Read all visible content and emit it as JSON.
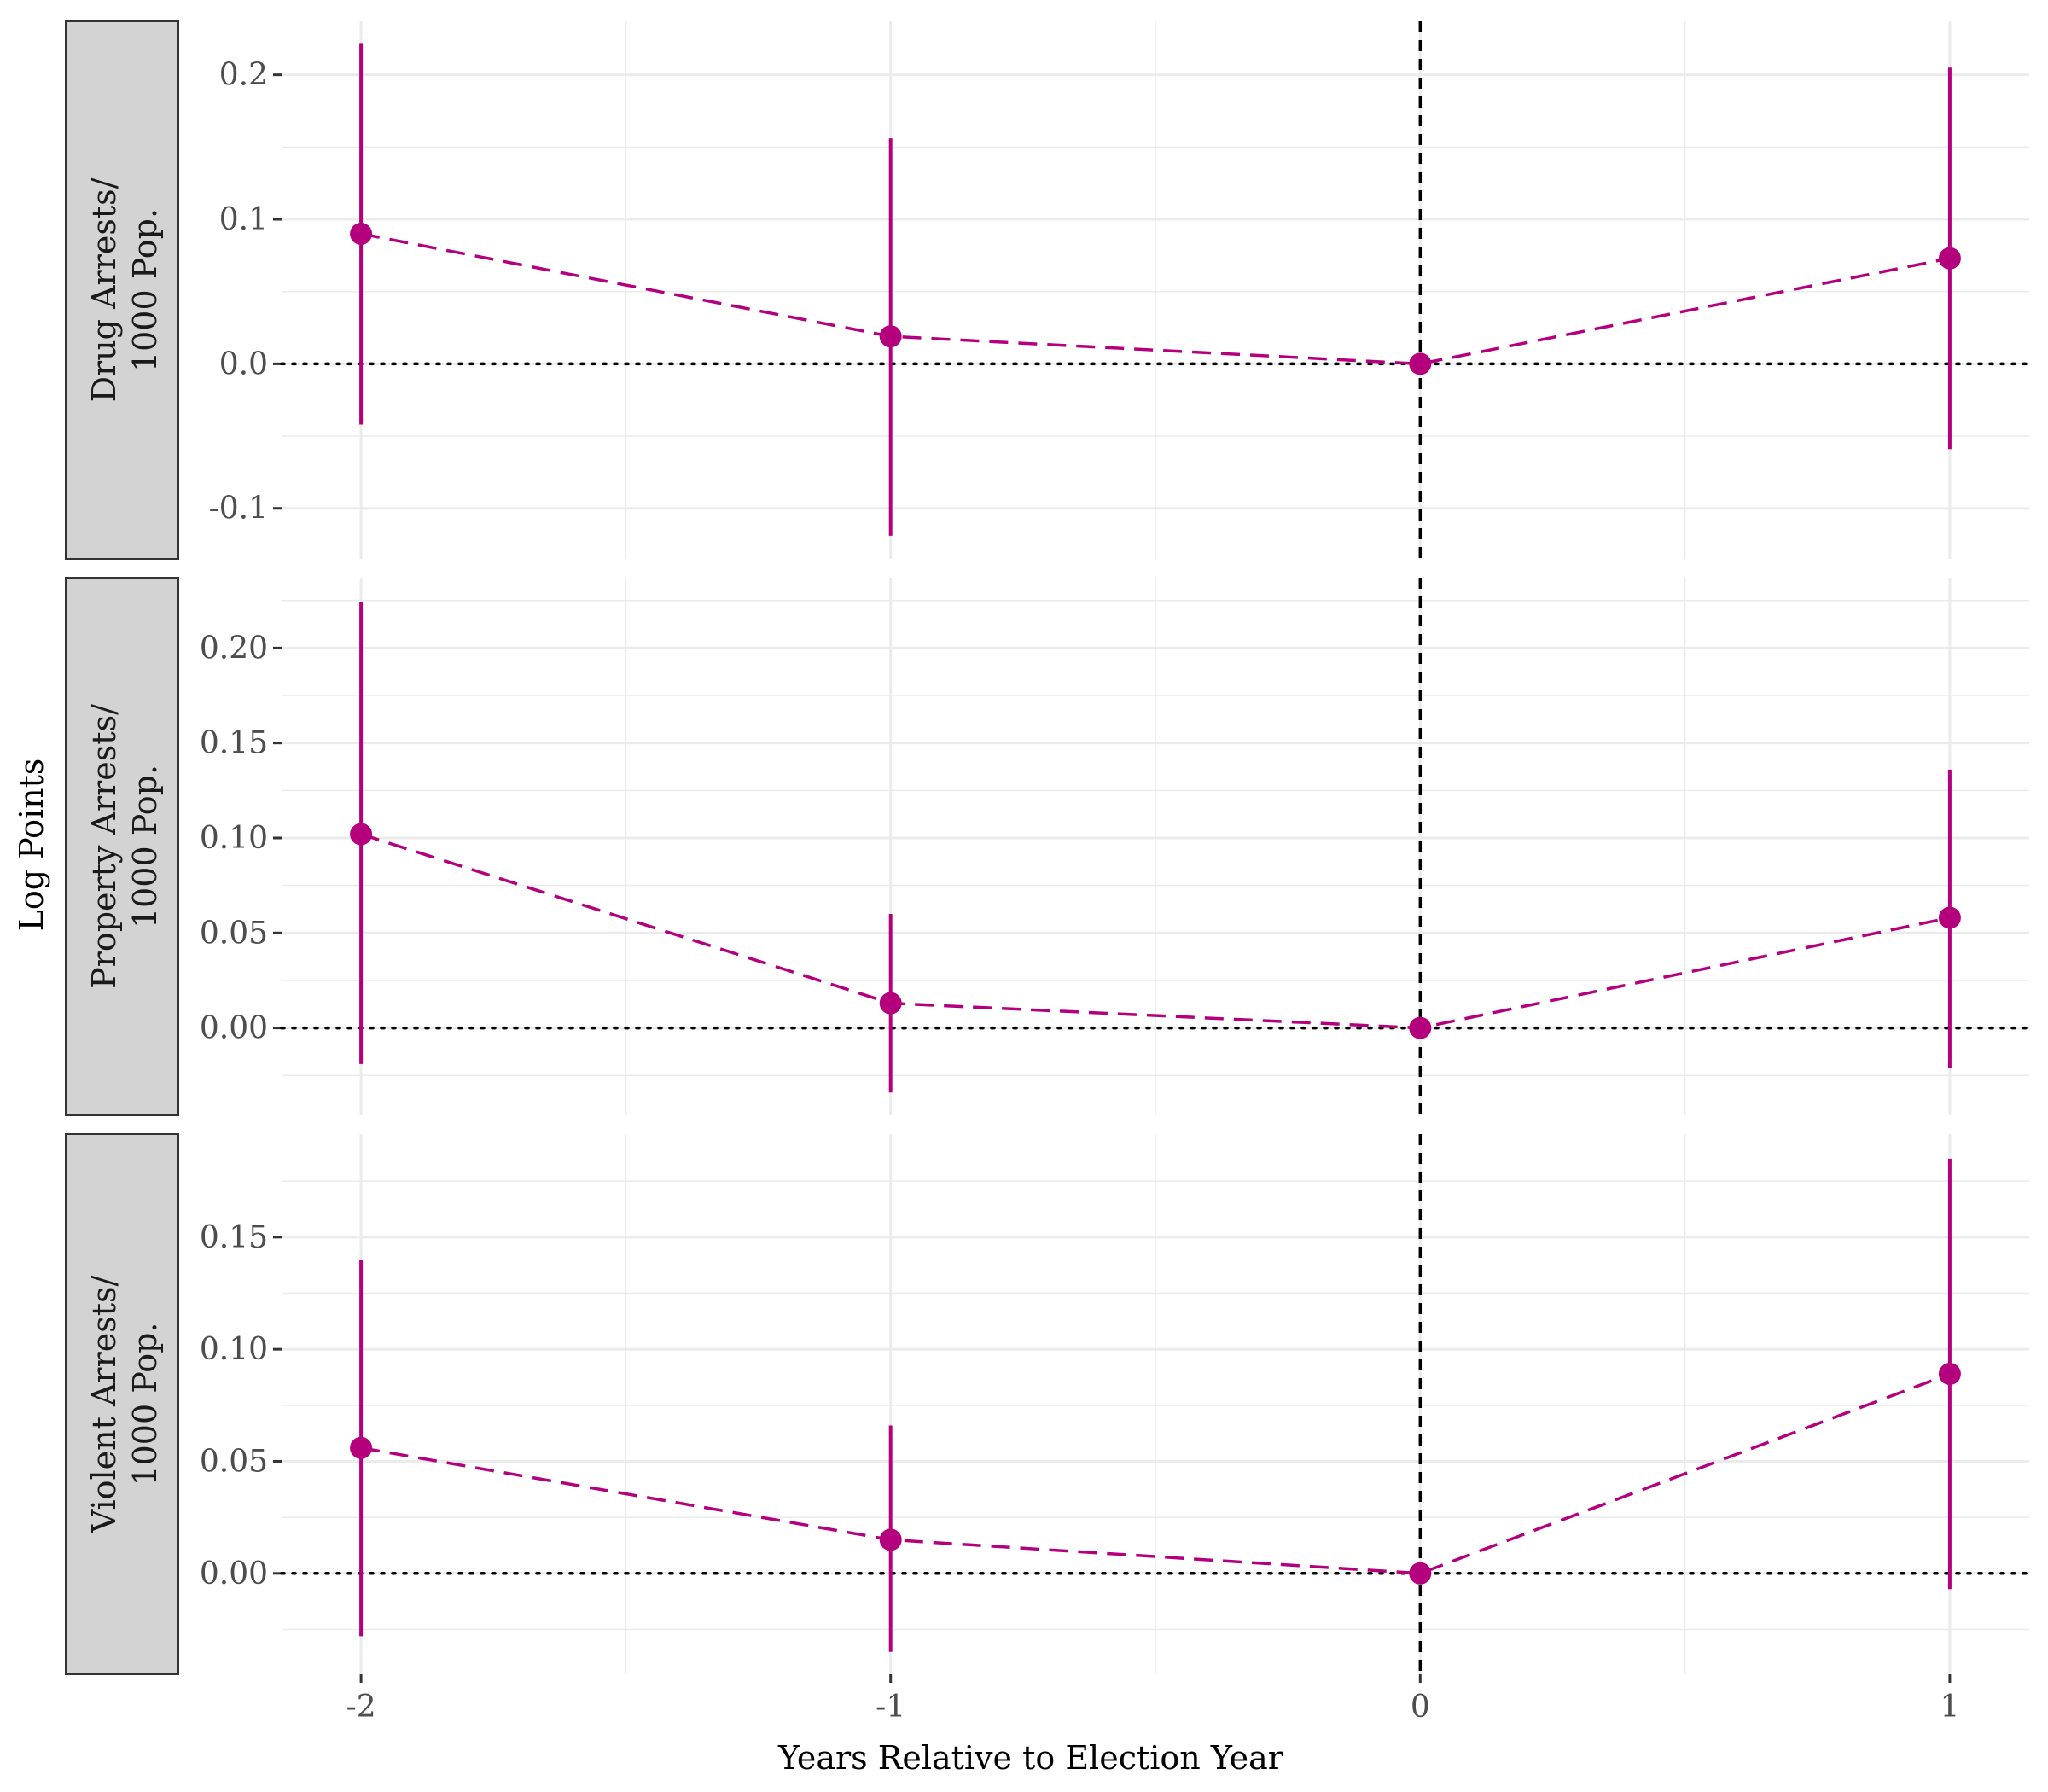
{
  "chart_data": {
    "type": "line",
    "xlabel": "Years Relative to Election Year",
    "ylabel": "Log Points",
    "x": [
      -2,
      -1,
      0,
      1
    ],
    "x_tick_labels": [
      "-2",
      "-1",
      "0",
      "1"
    ],
    "xlim": [
      -2.15,
      1.15
    ],
    "grid": true,
    "reference_lines": {
      "vertical_x": 0,
      "horizontal_y": 0
    },
    "colors": {
      "series": "#b5007e",
      "strip_fill": "#d3d3d3",
      "grid": "#ebebeb"
    },
    "panels": [
      {
        "label_lines": [
          "Drug Arrests/",
          "1000 Pop."
        ],
        "estimates": [
          0.09,
          0.019,
          0.0,
          0.073
        ],
        "ci_low": [
          -0.042,
          -0.119,
          0.0,
          -0.059
        ],
        "ci_high": [
          0.222,
          0.156,
          0.0,
          0.205
        ],
        "ylim": [
          -0.135,
          0.237
        ],
        "y_ticks": [
          -0.1,
          0.0,
          0.1,
          0.2
        ],
        "y_tick_labels": [
          "-0.1",
          "0.0",
          "0.1",
          "0.2"
        ]
      },
      {
        "label_lines": [
          "Property Arrests/",
          "1000 Pop."
        ],
        "estimates": [
          0.102,
          0.013,
          0.0,
          0.058
        ],
        "ci_low": [
          -0.019,
          -0.034,
          0.0,
          -0.021
        ],
        "ci_high": [
          0.224,
          0.06,
          0.0,
          0.136
        ],
        "ylim": [
          -0.046,
          0.237
        ],
        "y_ticks": [
          0.0,
          0.05,
          0.1,
          0.15,
          0.2
        ],
        "y_tick_labels": [
          "0.00",
          "0.05",
          "0.10",
          "0.15",
          "0.20"
        ]
      },
      {
        "label_lines": [
          "Violent Arrests/",
          "1000 Pop."
        ],
        "estimates": [
          0.056,
          0.015,
          0.0,
          0.089
        ],
        "ci_low": [
          -0.028,
          -0.035,
          0.0,
          -0.007
        ],
        "ci_high": [
          0.14,
          0.066,
          0.0,
          0.185
        ],
        "ylim": [
          -0.045,
          0.196
        ],
        "y_ticks": [
          0.0,
          0.05,
          0.1,
          0.15
        ],
        "y_tick_labels": [
          "0.00",
          "0.05",
          "0.10",
          "0.15"
        ]
      }
    ]
  }
}
